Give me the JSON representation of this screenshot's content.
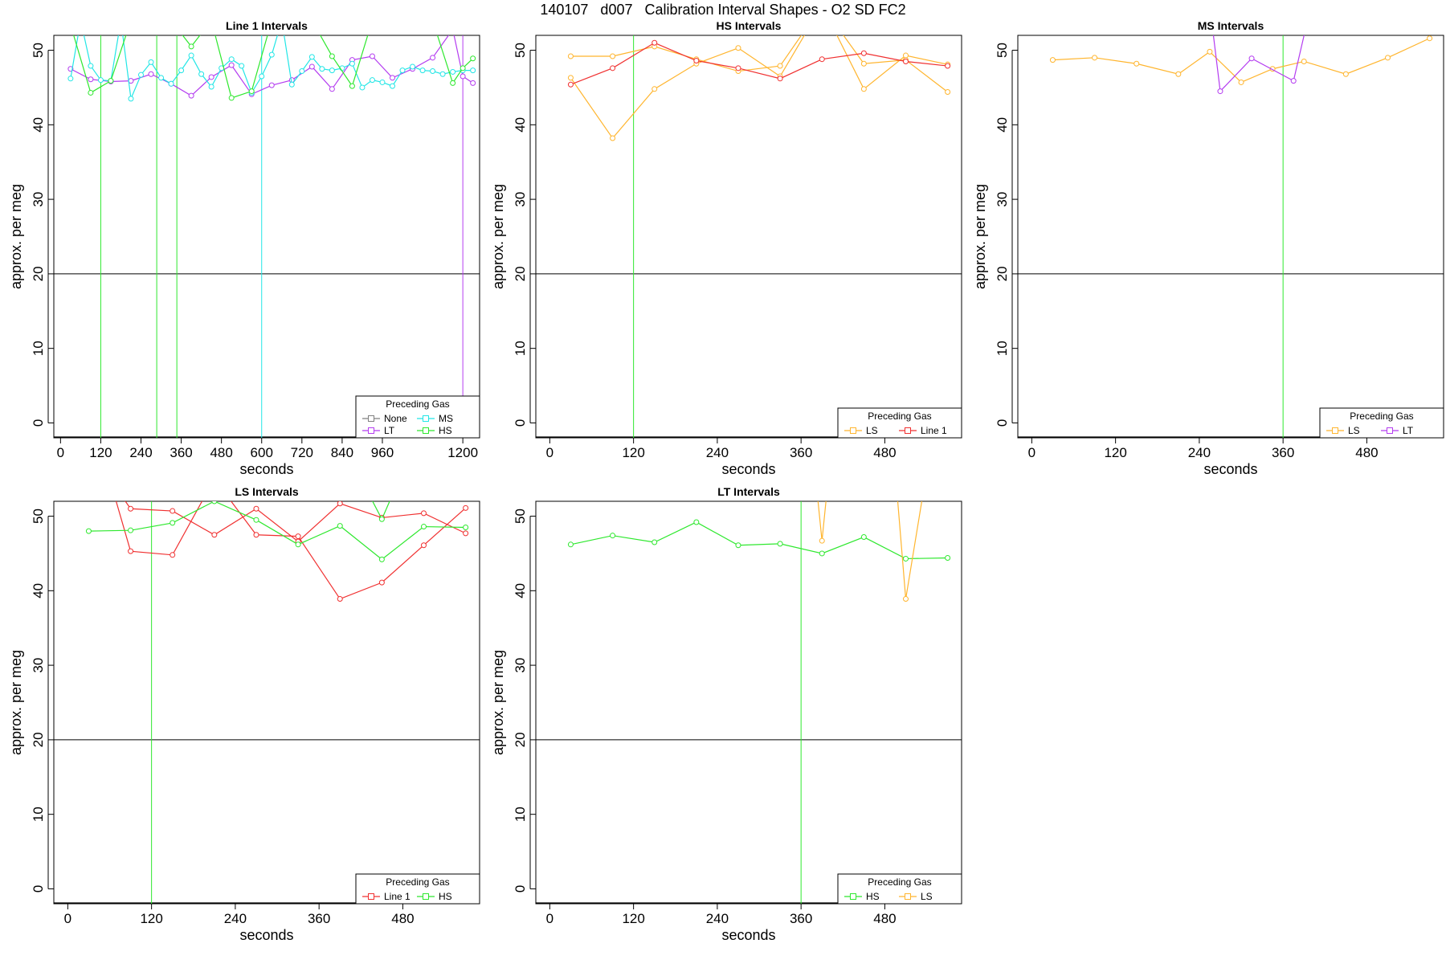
{
  "title": "140107   d007   Calibration Interval Shapes - O2 SD FC2",
  "colors": {
    "None": "#7f7f7f",
    "LT": "#b43cf0",
    "MS": "#22e6e6",
    "HS": "#2ee82e",
    "LS": "#ffb52e",
    "Line 1": "#f03030",
    "grid": "#000000"
  },
  "chart_data": [
    {
      "type": "line",
      "title": "Line 1 Intervals",
      "xlabel": "seconds",
      "ylabel": "approx. per meg",
      "xlim": [
        -20,
        1250
      ],
      "ylim": [
        -2,
        52
      ],
      "x_ticks": [
        0,
        120,
        240,
        360,
        480,
        600,
        720,
        840,
        960,
        1200
      ],
      "y_ticks": [
        0,
        10,
        20,
        30,
        40,
        50
      ],
      "hline": 20,
      "legend": {
        "title": "Preceding Gas",
        "entries": [
          "None",
          "MS",
          "LT",
          "HS"
        ],
        "columns": 2,
        "position": "bottom-right"
      },
      "vlines": [
        {
          "x": 120,
          "color": "HS"
        },
        {
          "x": 287,
          "color": "HS"
        },
        {
          "x": 347,
          "color": "HS"
        },
        {
          "x": 600,
          "color": "MS"
        },
        {
          "x": 1200,
          "color": "LT"
        }
      ],
      "series": [
        {
          "name": "LT",
          "x": [
            30,
            90,
            150,
            210,
            270,
            330,
            390,
            450,
            510,
            570,
            630,
            690,
            750,
            810,
            870,
            930,
            990,
            1050,
            1110,
            1170,
            1200,
            1230
          ],
          "y": [
            47.5,
            46.1,
            45.8,
            45.9,
            46.8,
            45.5,
            43.9,
            46.4,
            48.0,
            44.1,
            45.3,
            46.0,
            47.8,
            44.8,
            48.7,
            49.2,
            46.3,
            47.5,
            49.0,
            52.8,
            46.5,
            45.6
          ]
        },
        {
          "name": "MS",
          "x": [
            30,
            60,
            90,
            120,
            150,
            180,
            210,
            240,
            270,
            300,
            330,
            360,
            390,
            420,
            450,
            480,
            510,
            540,
            570,
            600,
            630,
            660,
            690,
            720,
            750,
            780,
            810,
            840,
            870,
            900,
            930,
            960,
            990,
            1020,
            1050,
            1080,
            1110,
            1140,
            1170,
            1200,
            1230
          ],
          "y": [
            46.2,
            54.0,
            47.9,
            46.0,
            45.9,
            54.0,
            43.5,
            46.7,
            48.4,
            46.3,
            45.5,
            47.3,
            49.3,
            46.8,
            45.1,
            47.6,
            48.8,
            47.9,
            44.3,
            46.5,
            49.4,
            54.0,
            45.4,
            47.2,
            49.1,
            47.5,
            47.3,
            47.6,
            48.2,
            45.0,
            46.0,
            45.7,
            45.2,
            47.3,
            47.8,
            47.3,
            47.2,
            46.8,
            47.1,
            47.3,
            47.3
          ]
        },
        {
          "name": "HS",
          "x": [
            30,
            90,
            150,
            210,
            270,
            330,
            390,
            450,
            510,
            570,
            630,
            690,
            750,
            810,
            870,
            930,
            990,
            1050,
            1110,
            1170,
            1200,
            1230
          ],
          "y": [
            53.4,
            44.3,
            45.9,
            54.0,
            54.0,
            54.0,
            50.5,
            54.0,
            43.6,
            44.5,
            54.0,
            54.0,
            54.0,
            49.2,
            45.2,
            54.0,
            54.0,
            54.0,
            54.0,
            45.6,
            47.6,
            48.9
          ]
        }
      ]
    },
    {
      "type": "line",
      "title": "HS Intervals",
      "xlabel": "seconds",
      "ylabel": "approx. per meg",
      "xlim": [
        -20,
        590
      ],
      "ylim": [
        -2,
        52
      ],
      "x_ticks": [
        0,
        120,
        240,
        360,
        480
      ],
      "y_ticks": [
        0,
        10,
        20,
        30,
        40,
        50
      ],
      "hline": 20,
      "legend": {
        "title": "Preceding Gas",
        "entries": [
          "LS",
          "Line 1"
        ],
        "columns": 2,
        "position": "bottom-right"
      },
      "vlines": [
        {
          "x": 120,
          "color": "HS"
        }
      ],
      "series": [
        {
          "name": "LS",
          "x": [
            30,
            90,
            150,
            210,
            270,
            330,
            390,
            450,
            510,
            570
          ],
          "y": [
            49.2,
            49.2,
            50.5,
            48.8,
            47.2,
            47.9,
            56.0,
            44.8,
            49.3,
            48.1
          ]
        },
        {
          "name": "LS",
          "x": [
            30,
            90,
            150,
            210,
            270,
            330,
            390,
            450,
            510,
            570
          ],
          "y": [
            46.3,
            38.2,
            44.8,
            48.2,
            50.3,
            46.5,
            56.0,
            48.2,
            48.7,
            44.4
          ]
        },
        {
          "name": "Line 1",
          "x": [
            30,
            90,
            150,
            210,
            270,
            330,
            390,
            450,
            510,
            570
          ],
          "y": [
            45.4,
            47.6,
            51.0,
            48.6,
            47.6,
            46.2,
            48.8,
            49.6,
            48.5,
            47.9
          ]
        }
      ]
    },
    {
      "type": "line",
      "title": "MS Intervals",
      "xlabel": "seconds",
      "ylabel": "approx. per meg",
      "xlim": [
        -20,
        590
      ],
      "ylim": [
        -2,
        52
      ],
      "x_ticks": [
        0,
        120,
        240,
        360,
        480
      ],
      "y_ticks": [
        0,
        10,
        20,
        30,
        40,
        50
      ],
      "hline": 20,
      "legend": {
        "title": "Preceding Gas",
        "entries": [
          "LS",
          "LT"
        ],
        "columns": 2,
        "position": "bottom-right"
      },
      "vlines": [
        {
          "x": 360,
          "color": "HS"
        }
      ],
      "series": [
        {
          "name": "LS",
          "x": [
            30,
            90,
            150,
            210,
            255,
            300,
            345,
            390,
            450,
            510,
            570
          ],
          "y": [
            48.7,
            49.0,
            48.2,
            46.8,
            49.8,
            45.7,
            47.5,
            48.5,
            46.8,
            49.0,
            51.6
          ]
        },
        {
          "name": "LT",
          "x": [
            255,
            270,
            315,
            375,
            400
          ],
          "y": [
            56.0,
            44.5,
            48.9,
            45.9,
            56.0
          ]
        }
      ]
    },
    {
      "type": "line",
      "title": "LS Intervals",
      "xlabel": "seconds",
      "ylabel": "approx. per meg",
      "xlim": [
        -20,
        590
      ],
      "ylim": [
        -2,
        52
      ],
      "x_ticks": [
        0,
        120,
        240,
        360,
        480
      ],
      "y_ticks": [
        0,
        10,
        20,
        30,
        40,
        50
      ],
      "hline": 20,
      "legend": {
        "title": "Preceding Gas",
        "entries": [
          "Line 1",
          "HS"
        ],
        "columns": 2,
        "position": "bottom-right"
      },
      "vlines": [
        {
          "x": 120,
          "color": "HS"
        }
      ],
      "series": [
        {
          "name": "Line 1",
          "x": [
            60,
            90,
            150,
            210,
            270,
            330,
            390,
            450,
            510,
            570
          ],
          "y": [
            55.0,
            51.0,
            50.7,
            47.5,
            51.0,
            46.6,
            51.7,
            49.8,
            50.4,
            47.7
          ]
        },
        {
          "name": "Line 1",
          "x": [
            60,
            90,
            150,
            210,
            270,
            330,
            390,
            450,
            510,
            570
          ],
          "y": [
            55.0,
            45.3,
            44.8,
            55.0,
            47.5,
            47.3,
            38.9,
            41.1,
            46.1,
            51.1
          ]
        },
        {
          "name": "HS",
          "x": [
            30,
            90,
            150,
            210,
            270,
            330,
            390,
            450,
            510,
            570
          ],
          "y": [
            48.0,
            48.1,
            49.1,
            52.0,
            49.5,
            46.2,
            48.7,
            44.2,
            48.6,
            48.5
          ]
        },
        {
          "name": "HS",
          "x": [
            420,
            450,
            475
          ],
          "y": [
            55.0,
            49.6,
            55.0
          ]
        }
      ]
    },
    {
      "type": "line",
      "title": "LT Intervals",
      "xlabel": "seconds",
      "ylabel": "approx. per meg",
      "xlim": [
        -20,
        590
      ],
      "ylim": [
        -2,
        52
      ],
      "x_ticks": [
        0,
        120,
        240,
        360,
        480
      ],
      "y_ticks": [
        0,
        10,
        20,
        30,
        40,
        50
      ],
      "hline": 20,
      "legend": {
        "title": "Preceding Gas",
        "entries": [
          "HS",
          "LS"
        ],
        "columns": 2,
        "position": "bottom-right"
      },
      "vlines": [
        {
          "x": 360,
          "color": "HS"
        }
      ],
      "series": [
        {
          "name": "HS",
          "x": [
            30,
            90,
            150,
            210,
            270,
            330,
            390,
            450,
            510,
            570
          ],
          "y": [
            46.2,
            47.4,
            46.5,
            49.2,
            46.1,
            46.3,
            45.0,
            47.2,
            44.3,
            44.4
          ]
        },
        {
          "name": "LS",
          "x": [
            380,
            390,
            400
          ],
          "y": [
            56.0,
            46.7,
            56.0
          ]
        },
        {
          "name": "LS",
          "x": [
            495,
            510,
            540
          ],
          "y": [
            56.0,
            38.9,
            56.0
          ]
        }
      ]
    }
  ]
}
